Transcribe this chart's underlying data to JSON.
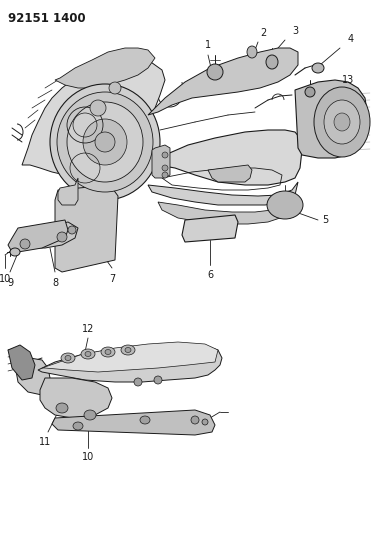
{
  "title_code": "92151 1400",
  "bg_color": "#ffffff",
  "line_color": "#1a1a1a",
  "label_color": "#000000",
  "fig_width": 3.89,
  "fig_height": 5.33,
  "dpi": 100,
  "title_fontsize": 8.5,
  "label_fontsize": 7.0,
  "img_data": ""
}
